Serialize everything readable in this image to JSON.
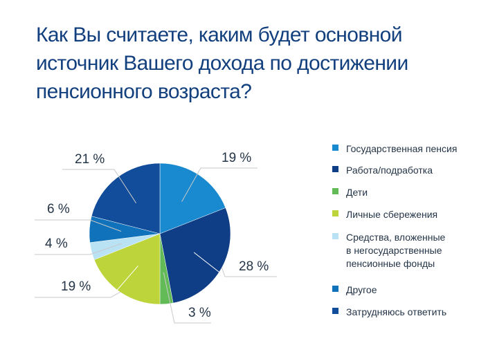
{
  "title_lines": [
    "Как Вы считаете, каким будет основной",
    "источник Вашего дохода по достижении",
    "пенсионного возраста?"
  ],
  "chart_data": {
    "type": "pie",
    "title": "Как Вы считаете, каким будет основной источник Вашего дохода по достижении пенсионного возраста?",
    "slices": [
      {
        "label": "Государственная пенсия",
        "value": 19,
        "display": "19 %",
        "color": "#1a8ad0"
      },
      {
        "label": "Работа/подработка",
        "value": 28,
        "display": "28 %",
        "color": "#0f3d86"
      },
      {
        "label": "Дети",
        "value": 3,
        "display": "3 %",
        "color": "#62bb56"
      },
      {
        "label": "Личные сбережения",
        "value": 19,
        "display": "19 %",
        "color": "#bdd43a"
      },
      {
        "label": "Средства, вложенные в негосударственные пенсионные фонды",
        "value": 4,
        "display": "4 %",
        "color": "#b9e2f5"
      },
      {
        "label": "Другое",
        "value": 6,
        "display": "6 %",
        "color": "#0f72ba"
      },
      {
        "label": "Затрудняюсь ответить",
        "value": 21,
        "display": "21 %",
        "color": "#124d9b"
      }
    ],
    "legend": [
      {
        "lines": [
          "Государственная пенсия"
        ],
        "color": "#1a8ad0"
      },
      {
        "lines": [
          "Работа/подработка"
        ],
        "color": "#0f3d86"
      },
      {
        "lines": [
          "Дети"
        ],
        "color": "#62bb56"
      },
      {
        "lines": [
          "Личные сбережения"
        ],
        "color": "#bdd43a"
      },
      {
        "lines": [
          "Средства, вложенные",
          "в негосударственные",
          "пенсионные фонды"
        ],
        "color": "#b9e2f5"
      },
      {
        "lines": [
          "Другое"
        ],
        "color": "#0f72ba"
      },
      {
        "lines": [
          "Затрудняюсь ответить"
        ],
        "color": "#124d9b"
      }
    ],
    "legend_position": "right"
  }
}
